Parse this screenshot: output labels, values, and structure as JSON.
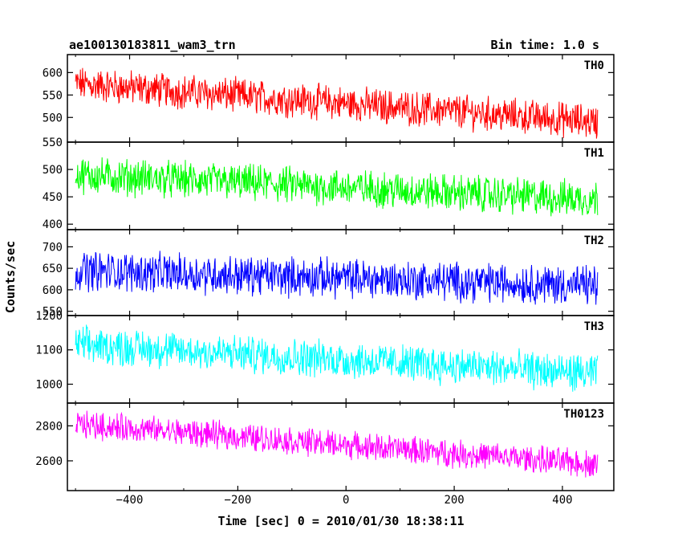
{
  "chart_data": {
    "type": "line",
    "title": "ae100130183811_wam3_trn",
    "bin_time_label": "Bin time: 1.0 s",
    "xlabel": "Time [sec] 0 = 2010/01/30 18:38:11",
    "ylabel": "Counts/sec",
    "xlim": [
      -515,
      495
    ],
    "x_range": [
      -500,
      465
    ],
    "x_ticks": [
      "−400",
      "−200",
      "0",
      "200",
      "400"
    ],
    "x_tick_values": [
      -400,
      -200,
      0,
      200,
      400
    ],
    "grid": false,
    "panels": [
      {
        "name": "TH0",
        "color": "#ff0000",
        "ylim": [
          445,
          640
        ],
        "y_ticks": [
          "500",
          "550",
          "600"
        ],
        "y_tick_values": [
          500,
          550,
          600
        ],
        "trend_start": 575,
        "trend_end": 490,
        "noise_amplitude": 32
      },
      {
        "name": "TH1",
        "color": "#00ff00",
        "ylim": [
          390,
          550
        ],
        "y_ticks": [
          "400",
          "450",
          "500",
          "550"
        ],
        "y_tick_values": [
          400,
          450,
          500,
          550
        ],
        "trend_start": 490,
        "trend_end": 445,
        "noise_amplitude": 28
      },
      {
        "name": "TH2",
        "color": "#0000ff",
        "ylim": [
          540,
          740
        ],
        "y_ticks": [
          "550",
          "600",
          "650",
          "700"
        ],
        "y_tick_values": [
          550,
          600,
          650,
          700
        ],
        "trend_start": 645,
        "trend_end": 610,
        "noise_amplitude": 38
      },
      {
        "name": "TH3",
        "color": "#00ffff",
        "ylim": [
          945,
          1200
        ],
        "y_ticks": [
          "1000",
          "1100",
          "1200"
        ],
        "y_tick_values": [
          1000,
          1100,
          1200
        ],
        "trend_start": 1115,
        "trend_end": 1030,
        "noise_amplitude": 45
      },
      {
        "name": "TH0123",
        "color": "#ff00ff",
        "ylim": [
          2430,
          2930
        ],
        "y_ticks": [
          "2600",
          "2800"
        ],
        "y_tick_values": [
          2600,
          2800
        ],
        "trend_start": 2810,
        "trend_end": 2580,
        "noise_amplitude": 65
      }
    ]
  }
}
